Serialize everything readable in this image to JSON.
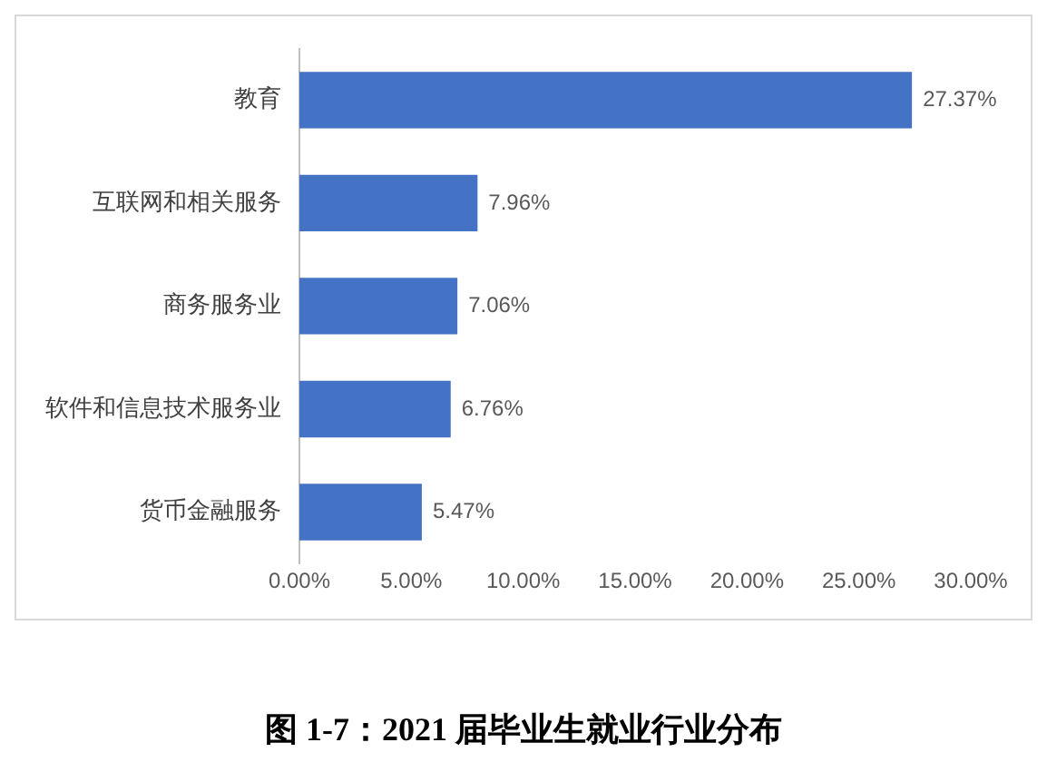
{
  "chart_data": {
    "type": "bar",
    "orientation": "horizontal",
    "title": "图 1-7：2021 届毕业生就业行业分布",
    "categories": [
      "教育",
      "互联网和相关服务",
      "商务服务业",
      "软件和信息技术服务业",
      "货币金融服务"
    ],
    "values": [
      27.37,
      7.96,
      7.06,
      6.76,
      5.47
    ],
    "value_labels": [
      "27.37%",
      "7.96%",
      "7.06%",
      "6.76%",
      "5.47%"
    ],
    "color": "#4472c4",
    "xlim": [
      0,
      30
    ],
    "xticks": [
      {
        "value": 0,
        "label": "0.00%"
      },
      {
        "value": 5,
        "label": "5.00%"
      },
      {
        "value": 10,
        "label": "10.00%"
      },
      {
        "value": 15,
        "label": "15.00%"
      },
      {
        "value": 20,
        "label": "20.00%"
      },
      {
        "value": 25,
        "label": "25.00%"
      },
      {
        "value": 30,
        "label": "30.00%"
      }
    ],
    "grid": false,
    "legend": false
  }
}
